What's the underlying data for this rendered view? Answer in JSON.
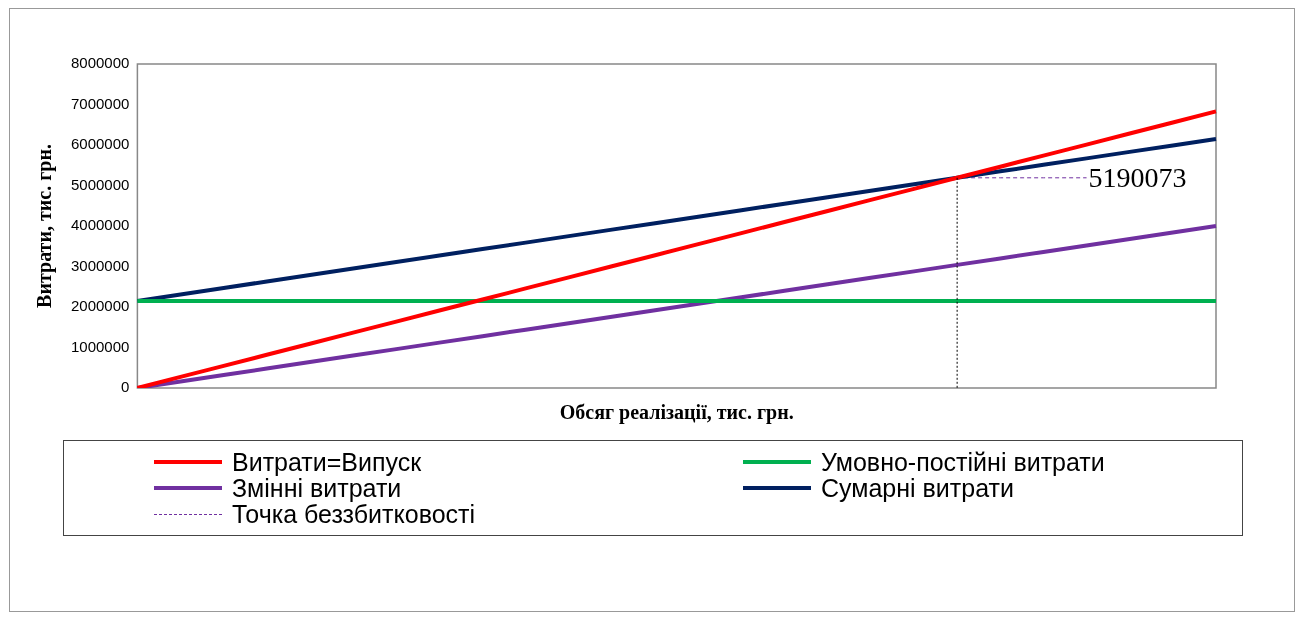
{
  "chart_data": {
    "type": "line",
    "xlabel": "Обсяг реалізації, тис. грн.",
    "ylabel": "Витрати, тис. грн.",
    "categories": [
      null,
      null,
      null,
      null,
      null,
      null,
      null,
      null,
      null,
      null,
      null,
      null,
      null,
      null,
      null,
      null,
      null,
      null,
      null,
      null,
      null,
      null,
      null,
      null,
      null,
      null
    ],
    "ylim": [
      0,
      8000000
    ],
    "yticks": [
      0,
      1000000,
      2000000,
      3000000,
      4000000,
      5000000,
      6000000,
      7000000,
      8000000
    ],
    "tick_labels": "y",
    "grid": false,
    "legend": "bottom",
    "marker": "none",
    "series": [
      {
        "name": "Витрати=Випуск",
        "color": "#ff0000",
        "values": [
          0,
          273200,
          546400,
          819600,
          1092800,
          1366000,
          1639200,
          1912400,
          2185600,
          2458800,
          2732000,
          3005200,
          3278400,
          3551600,
          3824800,
          4098000,
          4371200,
          4644400,
          4917600,
          5190800,
          5464000,
          5737200,
          6010400,
          6283600,
          6556800,
          6830000
        ]
      },
      {
        "name": "Умовно-постійні витрати",
        "color": "#00b050",
        "values": [
          2150000,
          2150000,
          2150000,
          2150000,
          2150000,
          2150000,
          2150000,
          2150000,
          2150000,
          2150000,
          2150000,
          2150000,
          2150000,
          2150000,
          2150000,
          2150000,
          2150000,
          2150000,
          2150000,
          2150000,
          2150000,
          2150000,
          2150000,
          2150000,
          2150000,
          2150000
        ]
      },
      {
        "name": "Змінні витрати",
        "color": "#7030a0",
        "values": [
          0,
          160000,
          320000,
          480000,
          640000,
          800000,
          960000,
          1120000,
          1280000,
          1440000,
          1600000,
          1760000,
          1920000,
          2080000,
          2240000,
          2400000,
          2560000,
          2720000,
          2880000,
          3040000,
          3200000,
          3360000,
          3520000,
          3680000,
          3840000,
          4000000
        ]
      },
      {
        "name": "Сумарні витрати",
        "color": "#002060",
        "values": [
          2150000,
          2310000,
          2470000,
          2630000,
          2790000,
          2950000,
          3110000,
          3270000,
          3430000,
          3590000,
          3750000,
          3910000,
          4070000,
          4230000,
          4390000,
          4550000,
          4710000,
          4870000,
          5030000,
          5190000,
          5350000,
          5510000,
          5670000,
          5830000,
          5990000,
          6150000
        ]
      },
      {
        "name": "Точка беззбитковості",
        "color": "#7030a0",
        "line_style": "dashed",
        "values": [
          null,
          null,
          null,
          null,
          null,
          null,
          null,
          null,
          null,
          null,
          null,
          null,
          null,
          null,
          null,
          null,
          null,
          null,
          null,
          5190073,
          5190073,
          5190073,
          5190073,
          null,
          null,
          null
        ],
        "value_labels": [
          null,
          null,
          null,
          null,
          null,
          null,
          null,
          null,
          null,
          null,
          null,
          null,
          null,
          null,
          null,
          null,
          null,
          null,
          null,
          null,
          null,
          null,
          "5190073",
          null,
          null,
          null
        ]
      }
    ]
  }
}
